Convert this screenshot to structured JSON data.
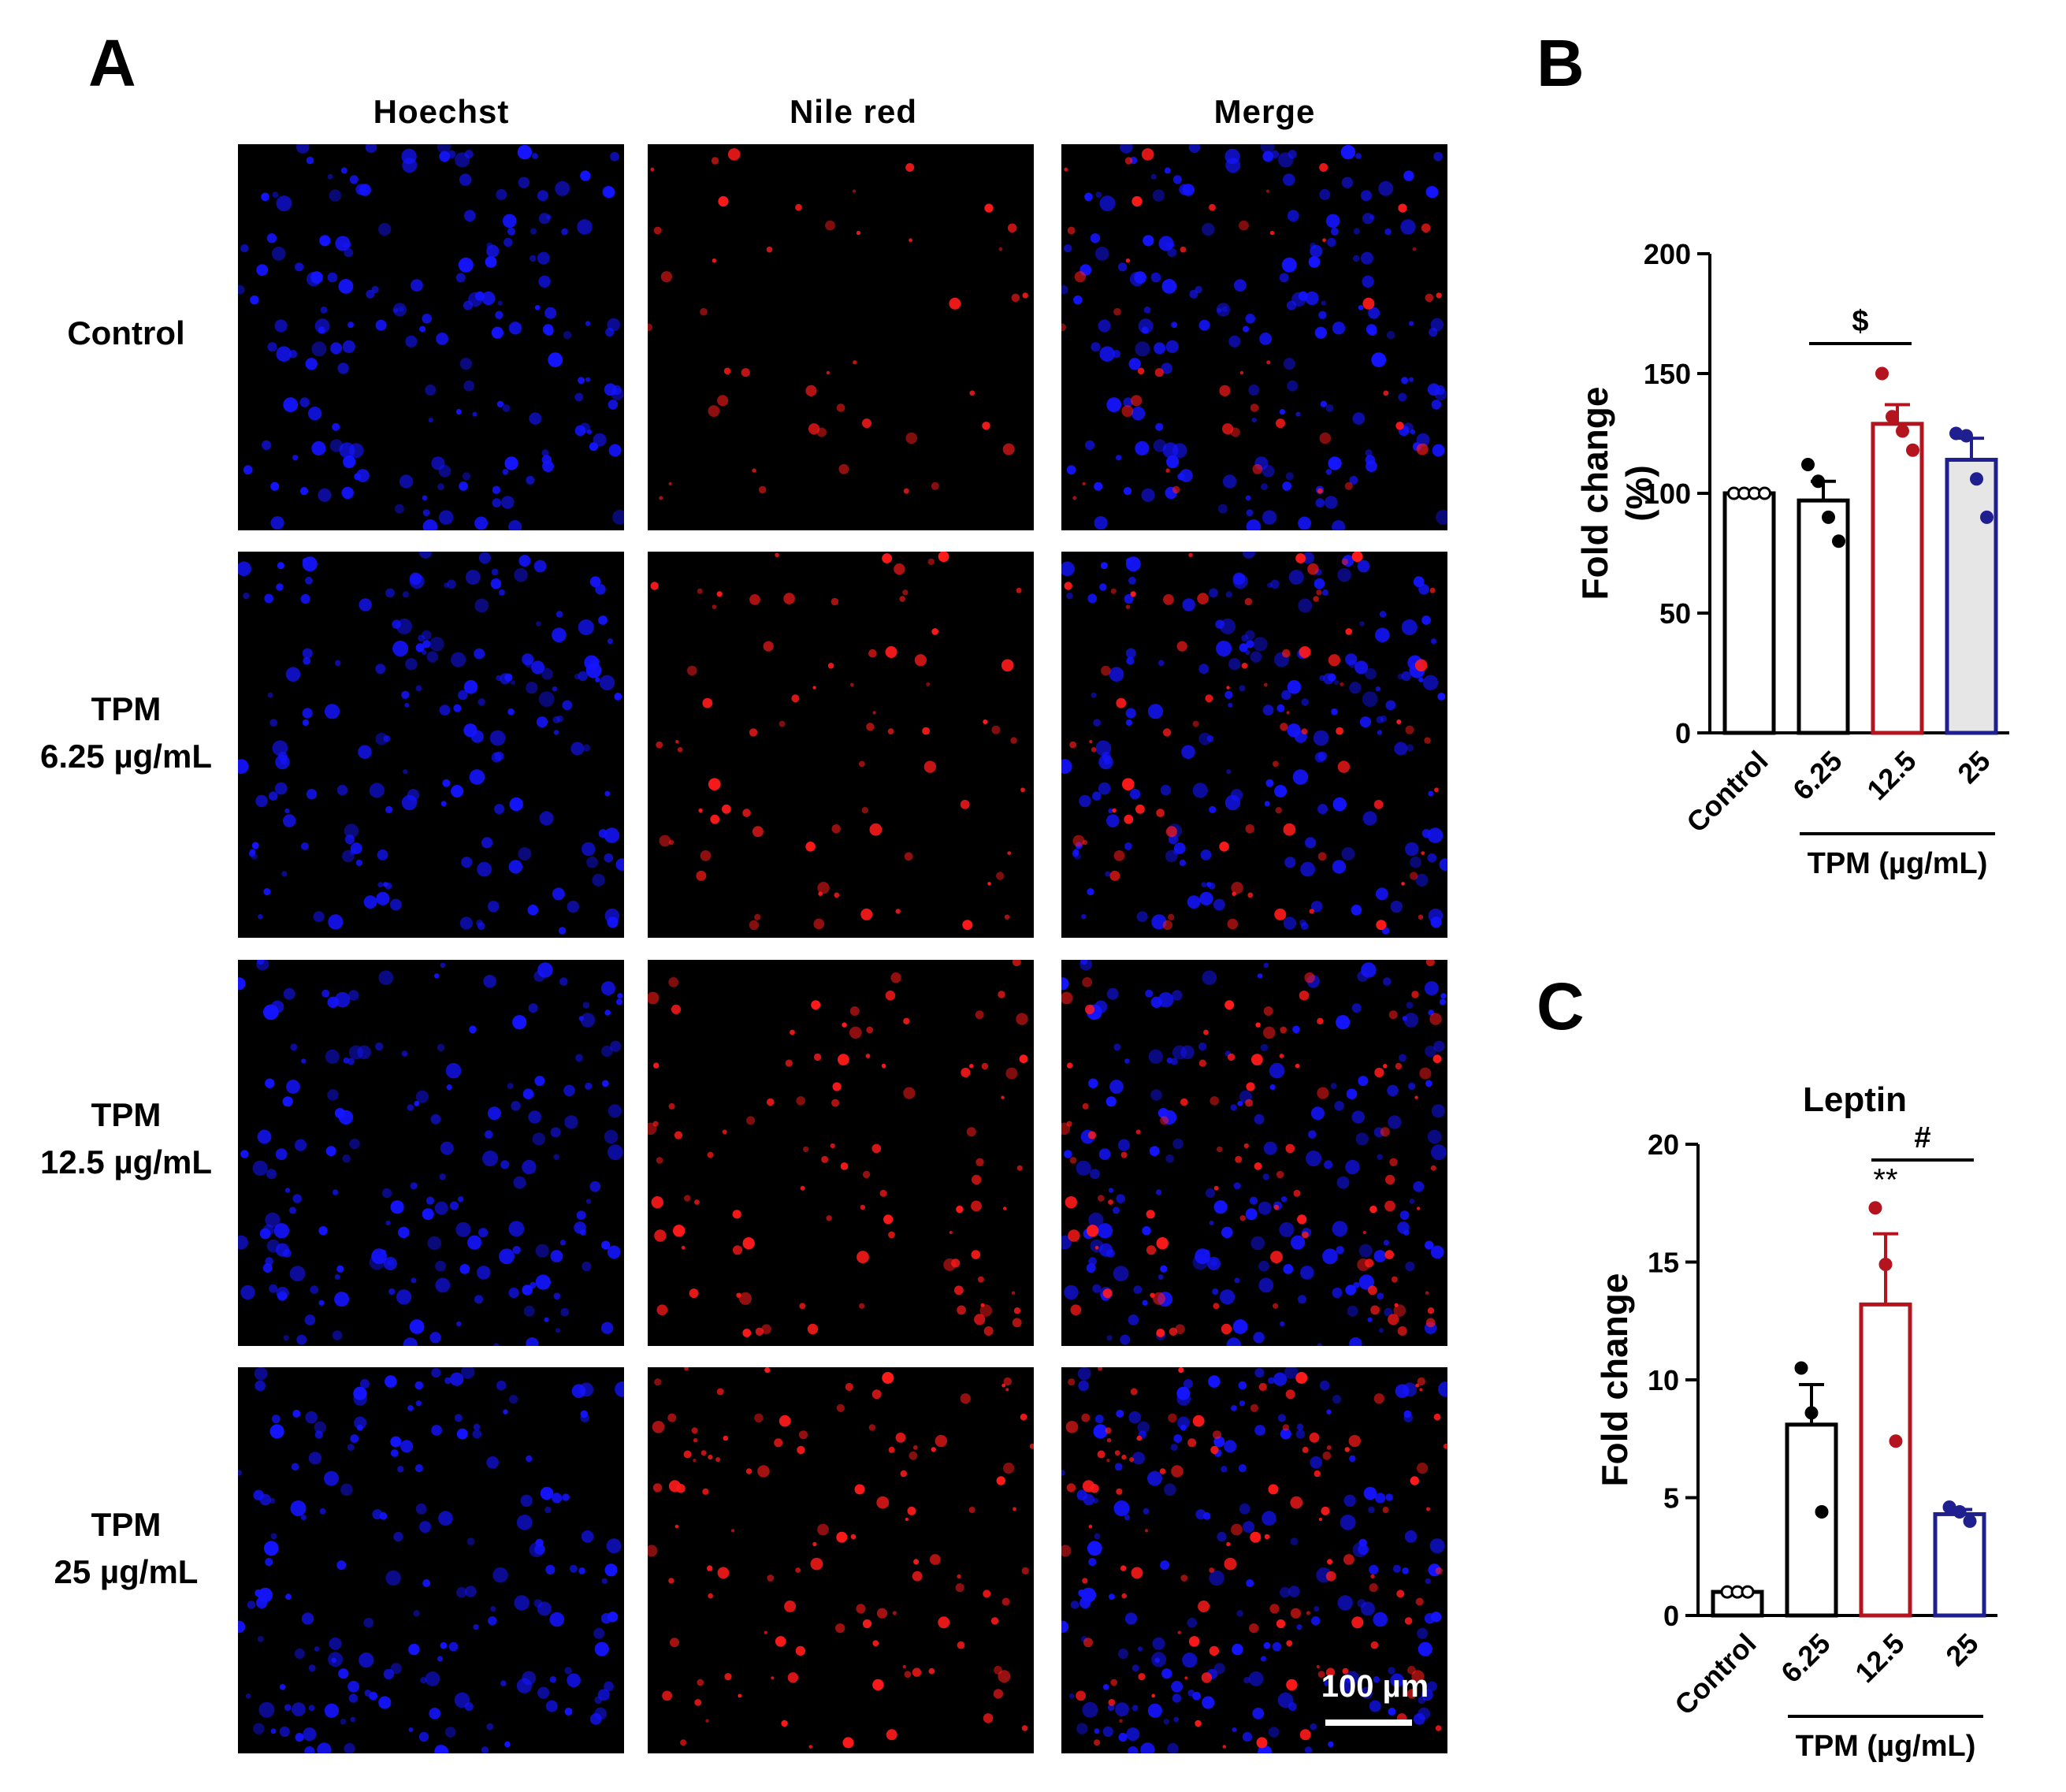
{
  "panel_a": {
    "letter": "A",
    "columns": [
      "Hoechst",
      "Nile red",
      "Merge"
    ],
    "rows": [
      {
        "line1": "Control",
        "line2": "",
        "density": 0.4
      },
      {
        "line1": "TPM",
        "line2": "6.25 µg/mL",
        "density": 0.65
      },
      {
        "line1": "TPM",
        "line2": "12.5 µg/mL",
        "density": 0.85
      },
      {
        "line1": "TPM",
        "line2": "25 µg/mL",
        "density": 1.0
      }
    ],
    "scale_bar": "100 µm",
    "colors": {
      "hoechst": "#1414ff",
      "nile_red": "#ff1a1a",
      "background": "#000000"
    }
  },
  "chart_data": [
    {
      "panel": "B",
      "type": "bar",
      "title": "",
      "categories": [
        "Control",
        "6.25",
        "12.5",
        "25"
      ],
      "group_label": "TPM (µg/mL)",
      "ylabel_line1": "Fold change",
      "ylabel_line2": "(%)",
      "ylim": [
        0,
        200
      ],
      "yticks": [
        0,
        50,
        100,
        150,
        200
      ],
      "values": [
        100,
        97,
        129,
        114
      ],
      "errors": [
        0,
        8,
        8,
        9
      ],
      "points": [
        [
          100,
          100,
          100,
          100
        ],
        [
          112,
          105,
          90,
          80
        ],
        [
          150,
          132,
          126,
          118
        ],
        [
          125,
          124,
          106,
          90
        ]
      ],
      "colors": [
        "#000000",
        "#000000",
        "#b3141e",
        "#1f1f8f"
      ],
      "fills": [
        "#ffffff",
        "#ffffff",
        "#ffffff",
        "#e6e6e6"
      ],
      "significance": [
        {
          "from": 1,
          "to": 2,
          "label": "$"
        }
      ]
    },
    {
      "panel": "C",
      "type": "bar",
      "title": "Leptin",
      "categories": [
        "Control",
        "6.25",
        "12.5",
        "25"
      ],
      "group_label": "TPM (µg/mL)",
      "ylabel_line1": "Fold change",
      "ylabel_line2": "",
      "ylim": [
        0,
        20
      ],
      "yticks": [
        0,
        5,
        10,
        15,
        20
      ],
      "values": [
        1,
        8.1,
        13.2,
        4.3
      ],
      "errors": [
        0,
        1.7,
        3.0,
        0.2
      ],
      "points": [
        [
          1,
          1,
          1
        ],
        [
          10.5,
          8.6,
          4.4
        ],
        [
          17.3,
          14.9,
          7.4
        ],
        [
          4.6,
          4.4,
          4.0
        ]
      ],
      "colors": [
        "#000000",
        "#000000",
        "#b3141e",
        "#1f1f8f"
      ],
      "fills": [
        "#ffffff",
        "#ffffff",
        "#ffffff",
        "#ffffff"
      ],
      "bar_labels": [
        "",
        "",
        "**",
        ""
      ],
      "significance": [
        {
          "from": 2,
          "to": 3,
          "label": "#"
        }
      ]
    }
  ]
}
